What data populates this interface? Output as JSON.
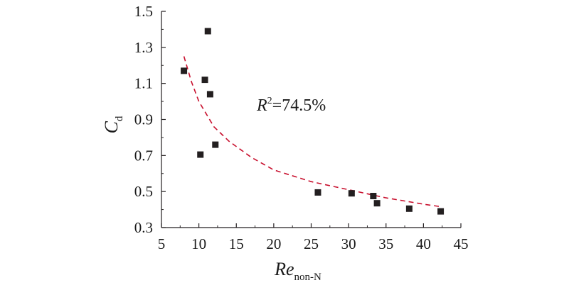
{
  "chart_data": {
    "type": "scatter",
    "xlabel": "Re",
    "xlabel_sub": "non-N",
    "ylabel": "C",
    "ylabel_sub": "d",
    "xlim": [
      5,
      45
    ],
    "ylim": [
      0.3,
      1.5
    ],
    "x_ticks": [
      "5",
      "10",
      "15",
      "20",
      "25",
      "30",
      "35",
      "40",
      "45"
    ],
    "y_ticks": [
      "0.3",
      "0.5",
      "0.7",
      "0.9",
      "1.1",
      "1.3",
      "1.5"
    ],
    "grid": false,
    "annotation": {
      "prefix": "R",
      "sup": "2",
      "value": "=74.5%"
    },
    "series": [
      {
        "marker": "square",
        "color": "#231f20",
        "points": [
          {
            "x": 8.0,
            "y": 1.17
          },
          {
            "x": 10.2,
            "y": 0.705
          },
          {
            "x": 10.8,
            "y": 1.12
          },
          {
            "x": 11.2,
            "y": 1.39
          },
          {
            "x": 11.5,
            "y": 1.04
          },
          {
            "x": 12.2,
            "y": 0.76
          },
          {
            "x": 25.9,
            "y": 0.495
          },
          {
            "x": 30.4,
            "y": 0.49
          },
          {
            "x": 33.3,
            "y": 0.475
          },
          {
            "x": 33.8,
            "y": 0.435
          },
          {
            "x": 38.1,
            "y": 0.405
          },
          {
            "x": 42.3,
            "y": 0.39
          }
        ]
      }
    ],
    "fit": {
      "style": "dashed",
      "color": "#c8102e",
      "points": [
        {
          "x": 8.0,
          "y": 1.25
        },
        {
          "x": 9.0,
          "y": 1.11
        },
        {
          "x": 10.0,
          "y": 1.0
        },
        {
          "x": 12.0,
          "y": 0.86
        },
        {
          "x": 14.0,
          "y": 0.78
        },
        {
          "x": 17.0,
          "y": 0.69
        },
        {
          "x": 20.0,
          "y": 0.62
        },
        {
          "x": 25.0,
          "y": 0.555
        },
        {
          "x": 30.0,
          "y": 0.51
        },
        {
          "x": 35.0,
          "y": 0.465
        },
        {
          "x": 40.0,
          "y": 0.43
        },
        {
          "x": 42.5,
          "y": 0.415
        }
      ]
    }
  }
}
